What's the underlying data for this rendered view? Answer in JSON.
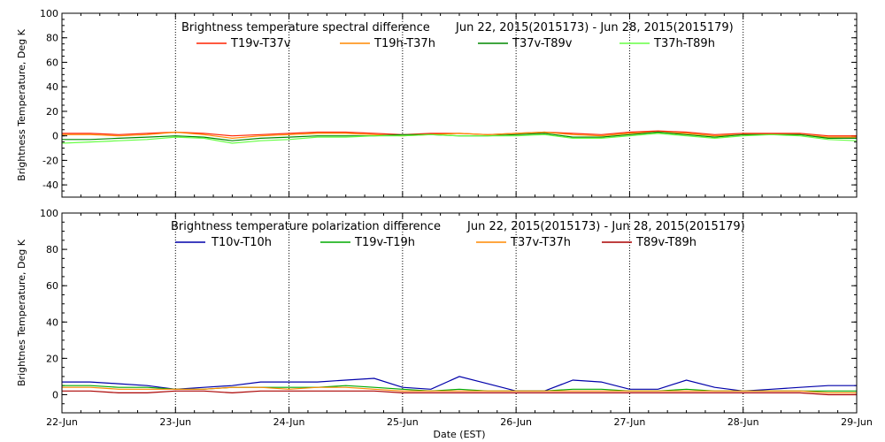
{
  "chart_data": [
    {
      "type": "line",
      "title": "Brightness temperature spectral difference",
      "date_range": "Jun 22, 2015(2015173) - Jun 28, 2015(2015179)",
      "ylabel": "Brightness Temperature, Deg K",
      "xlabel": "",
      "ylim": [
        -50,
        100
      ],
      "yticks": [
        "100",
        "80",
        "60",
        "40",
        "20",
        "0",
        "-20",
        "-40"
      ],
      "ytick_values": [
        100,
        80,
        60,
        40,
        20,
        0,
        -20,
        -40
      ],
      "xlim": [
        0,
        7
      ],
      "x": [
        0,
        0.25,
        0.5,
        0.75,
        1,
        1.25,
        1.5,
        1.75,
        2,
        2.25,
        2.5,
        2.75,
        3,
        3.25,
        3.5,
        3.75,
        4,
        4.25,
        4.5,
        4.75,
        5,
        5.25,
        5.5,
        5.75,
        6,
        6.25,
        6.5,
        6.75,
        7
      ],
      "series": [
        {
          "name": "T19v-T37v",
          "color": "#ff2200",
          "values": [
            2,
            2,
            1,
            2,
            3,
            2,
            0,
            1,
            2,
            3,
            3,
            2,
            1,
            2,
            2,
            1,
            2,
            3,
            2,
            1,
            3,
            4,
            3,
            1,
            2,
            2,
            2,
            0,
            0
          ]
        },
        {
          "name": "T19h-T37h",
          "color": "#ff8800",
          "values": [
            1,
            1,
            0,
            1,
            3,
            1,
            -2,
            0,
            1,
            2,
            2,
            1,
            0,
            1,
            2,
            1,
            2,
            3,
            1,
            0,
            2,
            3,
            2,
            0,
            1,
            1,
            1,
            -1,
            -1
          ]
        },
        {
          "name": "T37v-T89v",
          "color": "#008800",
          "values": [
            -3,
            -3,
            -2,
            -1,
            0,
            -1,
            -4,
            -2,
            -1,
            0,
            0,
            0,
            1,
            1,
            0,
            0,
            1,
            2,
            -1,
            -1,
            1,
            3,
            1,
            -1,
            1,
            1,
            1,
            -2,
            -2
          ]
        },
        {
          "name": "T37h-T89h",
          "color": "#66ff44",
          "values": [
            -6,
            -5,
            -4,
            -3,
            -1,
            -2,
            -6,
            -4,
            -3,
            -1,
            -1,
            0,
            0,
            1,
            0,
            0,
            0,
            1,
            -2,
            -2,
            0,
            2,
            0,
            -2,
            0,
            1,
            0,
            -3,
            -4
          ]
        }
      ]
    },
    {
      "type": "line",
      "title": "Brightness temperature polarization difference",
      "date_range": "Jun 22, 2015(2015173) - Jun 28, 2015(2015179)",
      "ylabel": "Brightnes Temperature, Deg K",
      "xlabel": "Date (EST)",
      "ylim": [
        -10,
        100
      ],
      "yticks": [
        "100",
        "80",
        "60",
        "40",
        "20",
        "0"
      ],
      "ytick_values": [
        100,
        80,
        60,
        40,
        20,
        0
      ],
      "xlim": [
        0,
        7
      ],
      "xticks": [
        "22-Jun",
        "23-Jun",
        "24-Jun",
        "25-Jun",
        "26-Jun",
        "27-Jun",
        "28-Jun",
        "29-Jun"
      ],
      "x": [
        0,
        0.25,
        0.5,
        0.75,
        1,
        1.25,
        1.5,
        1.75,
        2,
        2.25,
        2.5,
        2.75,
        3,
        3.25,
        3.5,
        3.75,
        4,
        4.25,
        4.5,
        4.75,
        5,
        5.25,
        5.5,
        5.75,
        6,
        6.25,
        6.5,
        6.75,
        7
      ],
      "series": [
        {
          "name": "T10v-T10h",
          "color": "#0000aa",
          "values": [
            7,
            7,
            6,
            5,
            3,
            4,
            5,
            7,
            7,
            7,
            8,
            9,
            4,
            3,
            10,
            6,
            2,
            2,
            8,
            7,
            3,
            3,
            8,
            4,
            2,
            3,
            4,
            5,
            5
          ]
        },
        {
          "name": "T19v-T19h",
          "color": "#00aa00",
          "values": [
            5,
            5,
            4,
            4,
            3,
            3,
            4,
            4,
            4,
            4,
            5,
            4,
            3,
            2,
            3,
            2,
            2,
            2,
            3,
            3,
            2,
            2,
            3,
            2,
            2,
            2,
            2,
            2,
            2
          ]
        },
        {
          "name": "T37v-T37h",
          "color": "#ff8800",
          "values": [
            4,
            4,
            3,
            3,
            3,
            3,
            4,
            4,
            3,
            4,
            4,
            3,
            2,
            2,
            2,
            2,
            2,
            2,
            2,
            2,
            2,
            2,
            2,
            2,
            2,
            2,
            2,
            1,
            1
          ]
        },
        {
          "name": "T89v-T89h",
          "color": "#aa0000",
          "values": [
            2,
            2,
            1,
            1,
            2,
            2,
            1,
            2,
            2,
            2,
            2,
            2,
            1,
            1,
            1,
            1,
            1,
            1,
            1,
            1,
            1,
            1,
            1,
            1,
            1,
            1,
            1,
            0,
            0
          ]
        }
      ]
    }
  ]
}
